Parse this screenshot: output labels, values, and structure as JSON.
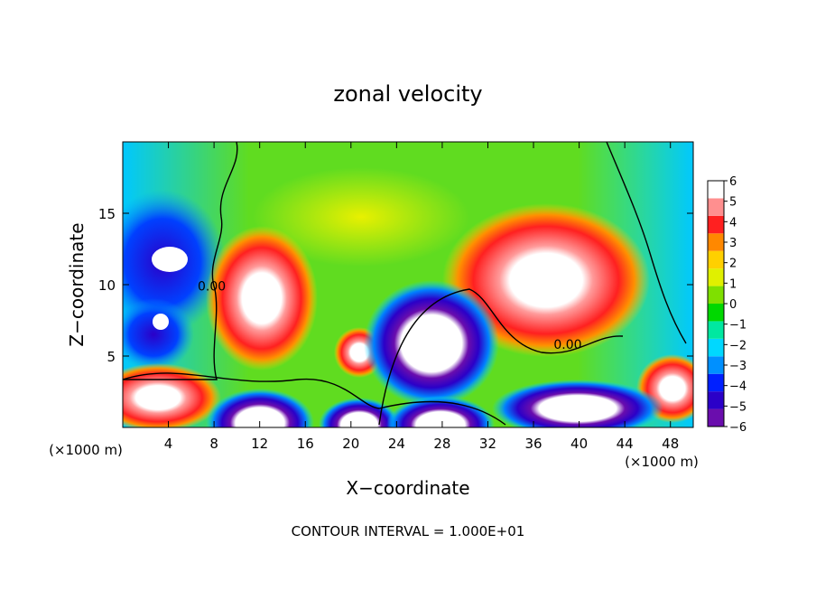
{
  "chart_data": {
    "type": "heatmap",
    "title": "zonal velocity",
    "xlabel": "X−coordinate",
    "ylabel": "Z−coordinate",
    "x_unit_left": "(×1000 m)",
    "x_unit_right": "(×1000 m)",
    "xlim": [
      0,
      50
    ],
    "ylim": [
      0,
      20
    ],
    "x_ticks": [
      4,
      8,
      12,
      16,
      20,
      24,
      28,
      32,
      36,
      40,
      44,
      48
    ],
    "y_ticks": [
      5,
      10,
      15
    ],
    "footer": "CONTOUR INTERVAL = 1.000E+01",
    "contour_labels": [
      {
        "text": "0.00",
        "x": 7.8,
        "y": 9.6
      },
      {
        "text": "0.00",
        "x": 39.0,
        "y": 5.5
      }
    ],
    "colorbar": {
      "min": -6,
      "max": 6,
      "ticks": [
        6,
        5,
        4,
        3,
        2,
        1,
        0,
        -1,
        -2,
        -3,
        -4,
        -5,
        -6
      ],
      "tick_labels": [
        "6",
        "5",
        "4",
        "3",
        "2",
        "1",
        "0",
        "−1",
        "−2",
        "−3",
        "−4",
        "−5",
        "−6"
      ],
      "colors": [
        "#6a0dad",
        "#2b00c8",
        "#0020ff",
        "#0090ff",
        "#00d8ff",
        "#00e8a0",
        "#00d800",
        "#7fe000",
        "#e0f000",
        "#ffd000",
        "#ff8800",
        "#ff2020",
        "#ff8f8f",
        "#ffffff"
      ]
    },
    "regions": [
      {
        "label": "upper-left",
        "value": -1.5,
        "x": 4,
        "y": 18
      },
      {
        "label": "left-mid",
        "value": -4.5,
        "x": 3,
        "y": 12
      },
      {
        "label": "left-low",
        "value": -3.5,
        "x": 4,
        "y": 7
      },
      {
        "label": "bottom-left",
        "value": 5.5,
        "x": 4,
        "y": 2
      },
      {
        "label": "column-12",
        "value": 6,
        "x": 12,
        "y": 9
      },
      {
        "label": "center-top",
        "value": 1.5,
        "x": 24,
        "y": 15
      },
      {
        "label": "center-mid",
        "value": 0.5,
        "x": 20,
        "y": 12
      },
      {
        "label": "bottom-center",
        "value": -6,
        "x": 20,
        "y": 1
      },
      {
        "label": "dome-28",
        "value": -6,
        "x": 28,
        "y": 6
      },
      {
        "label": "right-upper",
        "value": 6,
        "x": 38,
        "y": 10
      },
      {
        "label": "right-low",
        "value": -6,
        "x": 40,
        "y": 2
      },
      {
        "label": "far-right-top",
        "value": -1.5,
        "x": 48,
        "y": 17
      },
      {
        "label": "far-right-low",
        "value": 4,
        "x": 47,
        "y": 4
      }
    ]
  }
}
